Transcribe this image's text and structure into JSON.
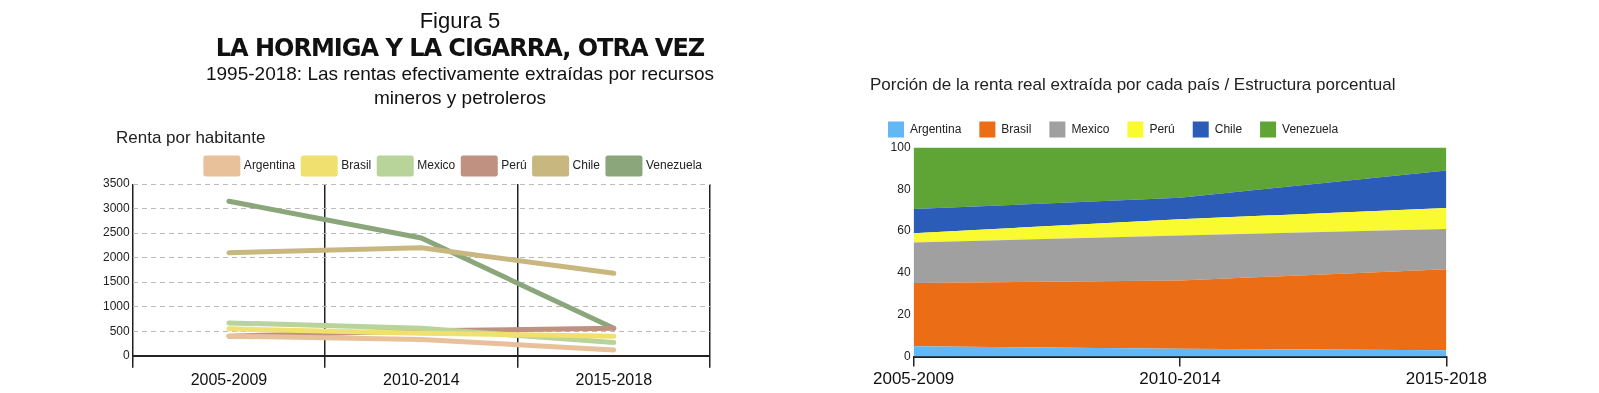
{
  "chart_data": [
    {
      "type": "line",
      "annotations": [
        "Figura 5"
      ],
      "title": "LA HORMIGA Y LA CIGARRA, OTRA VEZ",
      "subtitle": "1995-2018: Las rentas efectivamente extraídas por recursos mineros y petroleros",
      "ylabel": "Renta por habitante",
      "categories": [
        "2005-2009",
        "2010-2014",
        "2015-2018"
      ],
      "series": [
        {
          "name": "Argentina",
          "color": "#e8c19a",
          "values": [
            400,
            330,
            120
          ]
        },
        {
          "name": "Brasil",
          "color": "#f0e070",
          "values": [
            550,
            460,
            400
          ]
        },
        {
          "name": "Mexico",
          "color": "#b8d49a",
          "values": [
            670,
            560,
            270
          ]
        },
        {
          "name": "Perú",
          "color": "#c09080",
          "values": [
            400,
            510,
            560
          ]
        },
        {
          "name": "Chile",
          "color": "#c8b880",
          "values": [
            2100,
            2200,
            1680
          ]
        },
        {
          "name": "Venezuela",
          "color": "#8aa67a",
          "values": [
            3150,
            2400,
            560
          ]
        }
      ],
      "ylim": [
        0,
        3500
      ],
      "yticks": [
        0,
        500,
        1000,
        1500,
        2000,
        2500,
        3000,
        3500
      ],
      "grid": true,
      "legend": "top right",
      "marker": "none",
      "line_style": "solid"
    },
    {
      "type": "area",
      "stacked": true,
      "title": "Porción de la renta real extraída por cada país / Estructura porcentual",
      "categories": [
        "2005-2009",
        "2010-2014",
        "2015-2018"
      ],
      "series": [
        {
          "name": "Argentina",
          "color": "#62b8f5",
          "values": [
            5,
            3.7,
            3
          ]
        },
        {
          "name": "Brasil",
          "color": "#eb6e16",
          "values": [
            30.2,
            32.7,
            38.8
          ]
        },
        {
          "name": "Mexico",
          "color": "#a0a0a0",
          "values": [
            19.4,
            21.5,
            19.2
          ]
        },
        {
          "name": "Perú",
          "color": "#fafa30",
          "values": [
            4.4,
            7.8,
            10
          ]
        },
        {
          "name": "Chile",
          "color": "#2a5cb8",
          "values": [
            11.5,
            10.2,
            18
          ]
        },
        {
          "name": "Venezuela",
          "color": "#5fa535",
          "values": [
            29.5,
            24.1,
            11
          ]
        }
      ],
      "ylim": [
        0,
        100
      ],
      "yticks": [
        0,
        20,
        40,
        60,
        80,
        100
      ],
      "legend": "top"
    }
  ]
}
